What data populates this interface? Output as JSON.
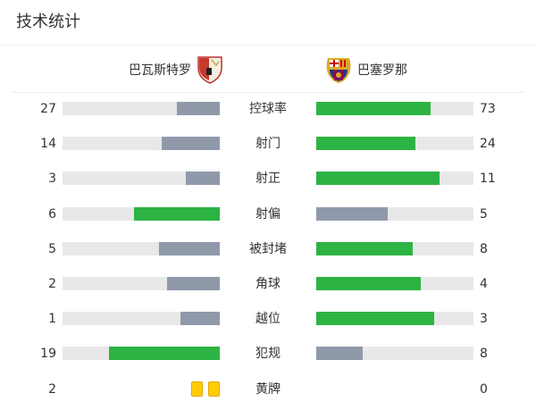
{
  "title": "技术统计",
  "home": {
    "name": "巴瓦斯特罗",
    "crest": "huesca-crest-icon"
  },
  "away": {
    "name": "巴塞罗那",
    "crest": "barcelona-crest-icon"
  },
  "colors": {
    "win": "#2db343",
    "lose": "#9099aa",
    "track": "#e8e8e8",
    "yellow": "#ffcc00"
  },
  "stats": [
    {
      "label": "控球率",
      "home": "27",
      "away": "73"
    },
    {
      "label": "射门",
      "home": "14",
      "away": "24"
    },
    {
      "label": "射正",
      "home": "3",
      "away": "11"
    },
    {
      "label": "射偏",
      "home": "6",
      "away": "5"
    },
    {
      "label": "被封堵",
      "home": "5",
      "away": "8"
    },
    {
      "label": "角球",
      "home": "2",
      "away": "4"
    },
    {
      "label": "越位",
      "home": "1",
      "away": "3"
    },
    {
      "label": "犯规",
      "home": "19",
      "away": "8"
    }
  ],
  "yellow": {
    "label": "黄牌",
    "home": "2",
    "away": "0"
  }
}
